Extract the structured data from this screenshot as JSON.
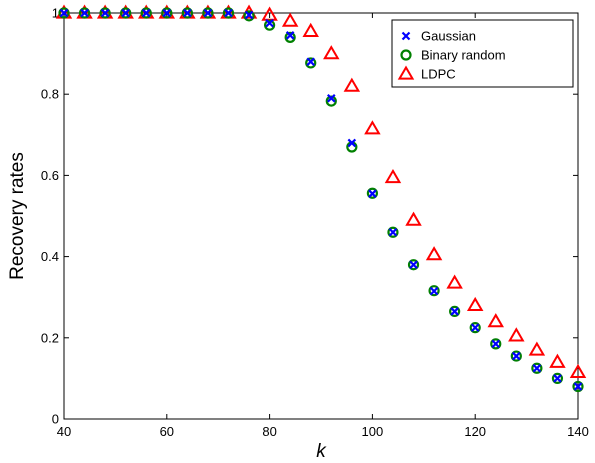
{
  "chart_data": {
    "type": "scatter",
    "title": "",
    "xlabel": "k",
    "ylabel": "Recovery rates",
    "xlim": [
      40,
      140
    ],
    "ylim": [
      0,
      1
    ],
    "x_ticks": [
      "40",
      "60",
      "80",
      "100",
      "120",
      "140"
    ],
    "y_ticks": [
      "0",
      "0.2",
      "0.4",
      "0.6",
      "0.8",
      "1"
    ],
    "grid": false,
    "legend_position": "top-right",
    "x": [
      40,
      44,
      48,
      52,
      56,
      60,
      64,
      68,
      72,
      76,
      80,
      84,
      88,
      92,
      96,
      100,
      104,
      108,
      112,
      116,
      120,
      124,
      128,
      132,
      136,
      140
    ],
    "series": [
      {
        "name": "Gaussian",
        "marker": "x",
        "color": "#0000ff",
        "values": [
          1,
          1,
          1,
          1,
          1,
          1,
          1,
          1,
          1,
          0.995,
          0.975,
          0.945,
          0.88,
          0.79,
          0.68,
          0.555,
          0.46,
          0.38,
          0.315,
          0.265,
          0.225,
          0.185,
          0.155,
          0.125,
          0.1,
          0.08
        ]
      },
      {
        "name": "Binary random",
        "marker": "circle",
        "color": "#008000",
        "values": [
          1,
          1,
          1,
          1,
          1,
          1,
          1,
          1,
          1,
          0.993,
          0.97,
          0.94,
          0.877,
          0.783,
          0.67,
          0.556,
          0.46,
          0.38,
          0.316,
          0.265,
          0.225,
          0.185,
          0.155,
          0.125,
          0.1,
          0.08
        ]
      },
      {
        "name": "LDPC",
        "marker": "triangle",
        "color": "#ff0000",
        "values": [
          1,
          1,
          1,
          1,
          1,
          1,
          1,
          1,
          1,
          1,
          0.995,
          0.98,
          0.955,
          0.9,
          0.82,
          0.715,
          0.595,
          0.49,
          0.405,
          0.335,
          0.28,
          0.24,
          0.205,
          0.17,
          0.14,
          0.115
        ]
      }
    ]
  }
}
